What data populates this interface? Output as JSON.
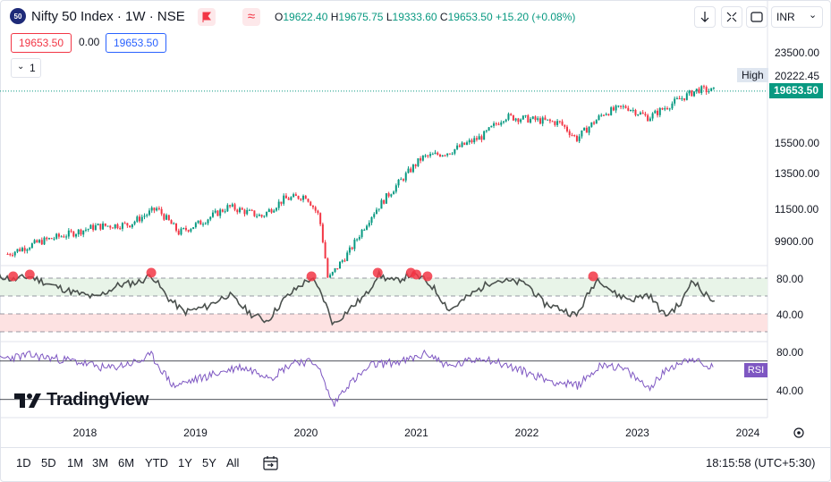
{
  "header": {
    "symbol_badge": "50",
    "title": "Nifty 50 Index · 1W · NSE",
    "ohlc": {
      "o_label": "O",
      "o": "19622.40",
      "h_label": "H",
      "h": "19675.75",
      "l_label": "L",
      "l": "19333.60",
      "c_label": "C",
      "c": "19653.50",
      "change": "+15.20 (+0.08%)"
    },
    "bid": "19653.50",
    "spread": "0.00",
    "ask": "19653.50",
    "indicator_count": "1",
    "currency": "INR"
  },
  "price_axis": {
    "tick_labels": [
      "23500.00",
      "20222.45",
      "15500.00",
      "13500.00",
      "11500.00",
      "9900.00"
    ],
    "high_label": "High",
    "high_value": "20222.45",
    "last_price": "19653.50"
  },
  "osc_axis": {
    "tick_labels": [
      "80.00",
      "40.00"
    ]
  },
  "rsi_pane": {
    "label": "RSI",
    "tick_labels": [
      "80.00",
      "40.00"
    ]
  },
  "time_axis": {
    "labels": [
      "2018",
      "2019",
      "2020",
      "2021",
      "2022",
      "2023",
      "2024"
    ]
  },
  "brand": "TradingView",
  "footer": {
    "ranges": [
      "1D",
      "5D",
      "1M",
      "3M",
      "6M",
      "YTD",
      "1Y",
      "5Y",
      "All"
    ],
    "clock": "18:15:58 (UTC+5:30)"
  },
  "colors": {
    "up": "#089981",
    "down": "#f23645",
    "osc_line": "#4a504d",
    "rsi_line": "#7e57c2",
    "band_upper": "#e8f4e8",
    "band_lower": "#fde2e2",
    "marker": "#f23645",
    "last_price_bg": "#089981"
  },
  "chart_data": {
    "type": "candlestick",
    "price": {
      "x": [
        2017.3,
        2017.6,
        2017.9,
        2018.1,
        2018.4,
        2018.65,
        2018.85,
        2019.05,
        2019.3,
        2019.6,
        2019.8,
        2020.0,
        2020.12,
        2020.2,
        2020.4,
        2020.6,
        2020.85,
        2021.05,
        2021.3,
        2021.6,
        2021.8,
        2022.0,
        2022.3,
        2022.45,
        2022.7,
        2022.9,
        2023.1,
        2023.3,
        2023.55,
        2023.7
      ],
      "close": [
        9350,
        9900,
        10300,
        10600,
        10700,
        11500,
        10300,
        10800,
        11600,
        11100,
        12000,
        12200,
        11100,
        8300,
        9500,
        11200,
        13000,
        14500,
        14900,
        16000,
        17500,
        17300,
        17000,
        15800,
        17800,
        18300,
        17400,
        18500,
        19800,
        19653.5
      ],
      "high_marker": 20222.45,
      "last": 19653.5,
      "open": 19622.4,
      "high": 19675.75,
      "low": 19333.6,
      "change": 15.2,
      "change_pct": 0.08
    },
    "oscillator": {
      "x": [
        2017.2,
        2017.35,
        2017.5,
        2017.7,
        2017.9,
        2018.1,
        2018.3,
        2018.5,
        2018.6,
        2018.75,
        2018.9,
        2019.1,
        2019.3,
        2019.5,
        2019.65,
        2019.8,
        2019.95,
        2020.05,
        2020.15,
        2020.25,
        2020.4,
        2020.55,
        2020.65,
        2020.8,
        2020.95,
        2021.05,
        2021.15,
        2021.3,
        2021.5,
        2021.7,
        2021.85,
        2022.0,
        2022.15,
        2022.3,
        2022.45,
        2022.6,
        2022.65,
        2022.8,
        2022.95,
        2023.1,
        2023.25,
        2023.4,
        2023.5,
        2023.6,
        2023.7
      ],
      "values": [
        84,
        78,
        82,
        72,
        64,
        58,
        72,
        76,
        84,
        58,
        42,
        48,
        62,
        40,
        32,
        56,
        72,
        80,
        60,
        28,
        46,
        62,
        84,
        76,
        84,
        80,
        70,
        44,
        62,
        78,
        76,
        74,
        52,
        46,
        38,
        72,
        80,
        62,
        56,
        62,
        38,
        52,
        80,
        62,
        56
      ],
      "markers_x": [
        2017.35,
        2017.5,
        2018.6,
        2020.05,
        2020.65,
        2020.95,
        2021.0,
        2021.1,
        2022.6
      ],
      "upper_band": [
        60,
        80
      ],
      "lower_band": [
        20,
        40
      ],
      "dashed_levels": [
        80,
        60,
        40,
        20
      ]
    },
    "rsi": {
      "x": [
        2017.2,
        2017.5,
        2017.9,
        2018.2,
        2018.5,
        2018.6,
        2018.8,
        2019.1,
        2019.4,
        2019.7,
        2019.9,
        2020.1,
        2020.15,
        2020.25,
        2020.35,
        2020.6,
        2020.9,
        2021.1,
        2021.3,
        2021.6,
        2021.9,
        2022.2,
        2022.45,
        2022.7,
        2022.9,
        2023.1,
        2023.3,
        2023.5,
        2023.6,
        2023.7
      ],
      "values": [
        72,
        76,
        70,
        62,
        70,
        76,
        44,
        54,
        64,
        54,
        70,
        68,
        52,
        24,
        42,
        66,
        70,
        78,
        64,
        74,
        62,
        50,
        44,
        68,
        60,
        42,
        64,
        74,
        64,
        64
      ],
      "levels": [
        70,
        30
      ]
    },
    "time_axis_years": [
      2018,
      2019,
      2020,
      2021,
      2022,
      2023,
      2024
    ]
  }
}
